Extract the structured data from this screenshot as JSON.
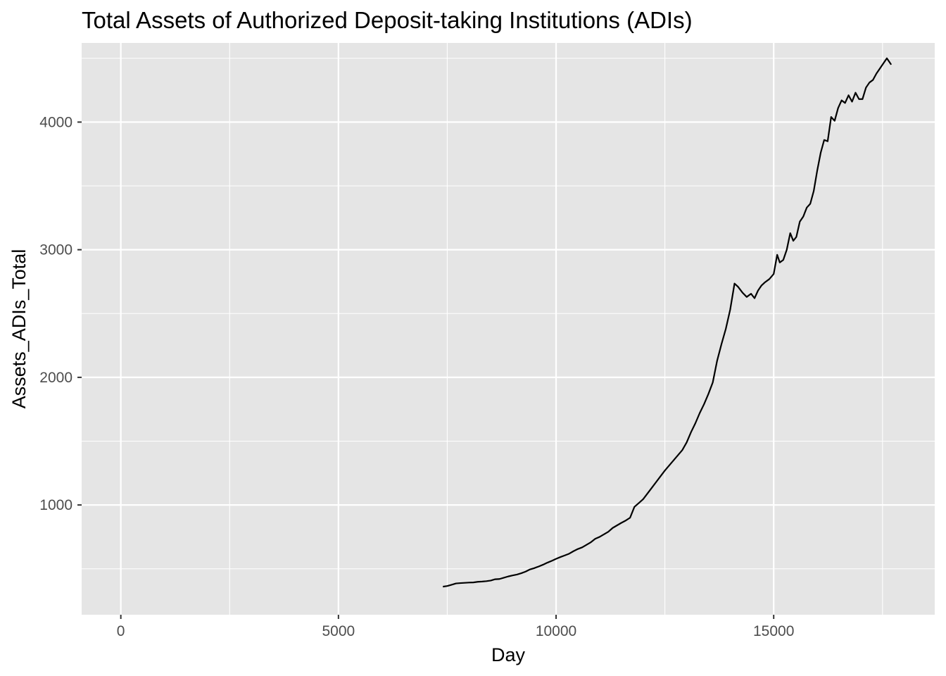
{
  "chart_data": {
    "type": "line",
    "title": "Total Assets of Authorized Deposit-taking Institutions (ADIs)",
    "xlabel": "Day",
    "ylabel": "Assets_ADIs_Total",
    "xlim": [
      -900,
      18700
    ],
    "ylim": [
      140,
      4620
    ],
    "x_ticks": [
      0,
      5000,
      10000,
      15000
    ],
    "x_tick_labels": [
      "0",
      "5000",
      "10000",
      "15000"
    ],
    "x_minor_ticks": [
      2500,
      7500,
      12500,
      17500
    ],
    "y_ticks": [
      1000,
      2000,
      3000,
      4000
    ],
    "y_tick_labels": [
      "1000",
      "2000",
      "3000",
      "4000"
    ],
    "y_minor_ticks": [
      500,
      1500,
      2500,
      3500,
      4500
    ],
    "grid": true,
    "legend": "none",
    "series": [
      {
        "name": "Assets_ADIs_Total",
        "color": "#000000",
        "x": [
          7400,
          7500,
          7600,
          7700,
          7800,
          7900,
          8000,
          8100,
          8200,
          8300,
          8400,
          8500,
          8600,
          8700,
          8800,
          8900,
          9000,
          9100,
          9200,
          9300,
          9400,
          9500,
          9600,
          9700,
          9800,
          9900,
          10000,
          10100,
          10200,
          10300,
          10400,
          10500,
          10600,
          10700,
          10800,
          10900,
          11000,
          11100,
          11200,
          11300,
          11400,
          11500,
          11600,
          11700,
          11800,
          11900,
          12000,
          12100,
          12200,
          12300,
          12400,
          12500,
          12600,
          12700,
          12800,
          12900,
          13000,
          13100,
          13200,
          13300,
          13400,
          13500,
          13600,
          13700,
          13800,
          13900,
          14000,
          14100,
          14180,
          14280,
          14380,
          14480,
          14560,
          14640,
          14720,
          14800,
          14900,
          15000,
          15080,
          15140,
          15220,
          15300,
          15380,
          15450,
          15520,
          15600,
          15680,
          15760,
          15840,
          15920,
          16000,
          16080,
          16160,
          16240,
          16320,
          16400,
          16480,
          16560,
          16640,
          16720,
          16800,
          16880,
          16960,
          17040,
          17120,
          17200,
          17280,
          17360,
          17440,
          17520,
          17600,
          17700
        ],
        "values": [
          360,
          365,
          375,
          385,
          388,
          390,
          392,
          393,
          398,
          400,
          403,
          408,
          418,
          420,
          430,
          440,
          448,
          455,
          465,
          478,
          495,
          505,
          518,
          532,
          548,
          562,
          578,
          592,
          605,
          618,
          638,
          655,
          668,
          688,
          708,
          735,
          750,
          770,
          790,
          820,
          840,
          860,
          878,
          900,
          985,
          1015,
          1045,
          1090,
          1135,
          1180,
          1225,
          1270,
          1310,
          1350,
          1390,
          1430,
          1490,
          1570,
          1640,
          1720,
          1790,
          1870,
          1960,
          2130,
          2260,
          2380,
          2530,
          2735,
          2710,
          2665,
          2630,
          2655,
          2620,
          2680,
          2720,
          2745,
          2770,
          2810,
          2960,
          2900,
          2920,
          3000,
          3130,
          3070,
          3100,
          3220,
          3260,
          3330,
          3360,
          3460,
          3620,
          3760,
          3860,
          3850,
          4040,
          4010,
          4110,
          4170,
          4150,
          4210,
          4160,
          4230,
          4180,
          4180,
          4270,
          4310,
          4330,
          4380,
          4420,
          4460,
          4500,
          4450
        ]
      }
    ]
  }
}
